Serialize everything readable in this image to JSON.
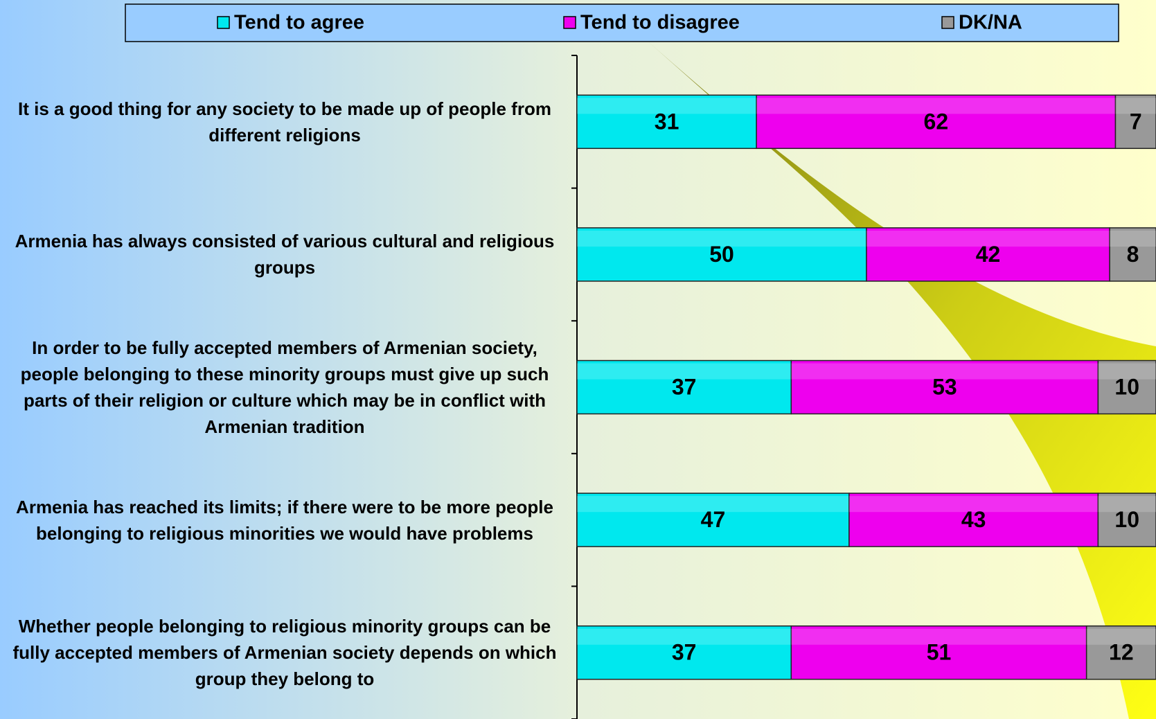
{
  "chart_data": {
    "type": "stacked_bar_horizontal",
    "categories": [
      "It is a good thing for any society to be made up of people from different religions",
      "Armenia has always consisted of various cultural and religious groups",
      "In order to be fully accepted members of Armenian society, people belonging to these minority groups must give up such parts of their religion or culture which may be in conflict with Armenian tradition",
      "Armenia has reached its limits; if there were to be more people belonging to religious minorities we would have problems",
      "Whether people belonging to religious minority groups can be fully accepted members of Armenian society depends on which group they belong to"
    ],
    "series": [
      {
        "name": "Tend to agree",
        "color": "#00e8ee",
        "values": [
          31,
          50,
          37,
          47,
          37
        ]
      },
      {
        "name": "Tend to disagree",
        "color": "#ee00ee",
        "values": [
          62,
          42,
          53,
          43,
          51
        ]
      },
      {
        "name": "DK/NA",
        "color": "#999999",
        "values": [
          7,
          8,
          10,
          10,
          12
        ]
      }
    ],
    "xlim": [
      0,
      100
    ],
    "legend": "top"
  }
}
